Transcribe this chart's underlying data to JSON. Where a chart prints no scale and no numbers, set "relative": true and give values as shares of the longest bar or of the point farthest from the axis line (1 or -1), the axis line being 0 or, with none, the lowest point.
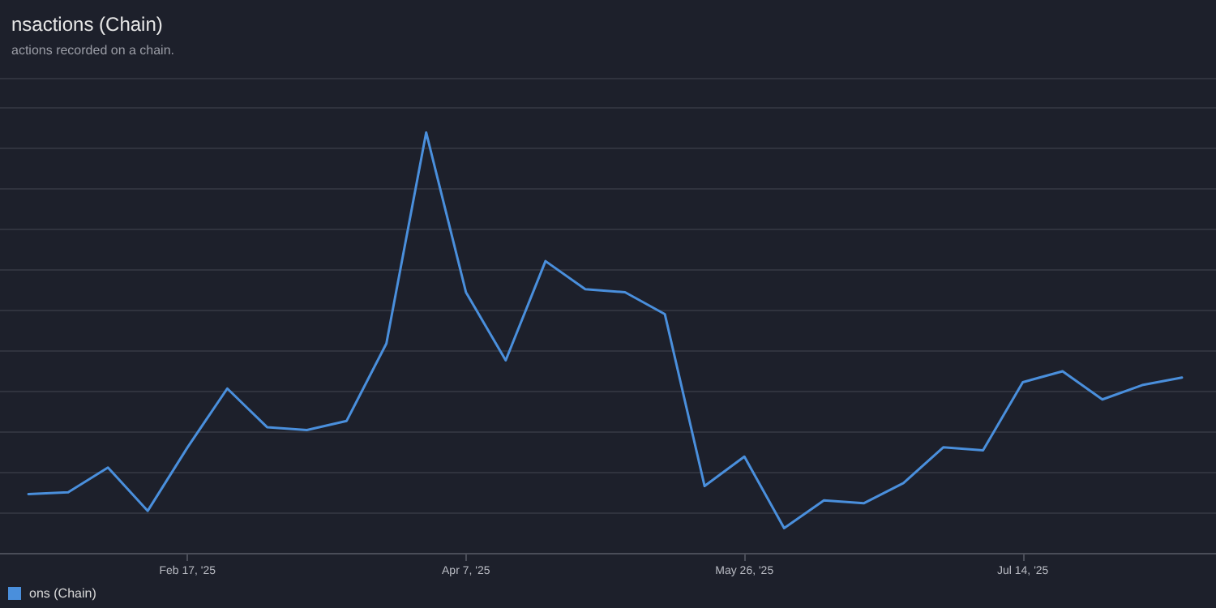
{
  "chart_data": {
    "type": "line",
    "title": "nsactions (Chain)",
    "subtitle": "actions recorded on a chain.",
    "relative": true,
    "x": [
      "2025-01-20",
      "2025-01-27",
      "2025-02-03",
      "2025-02-10",
      "2025-02-17",
      "2025-02-24",
      "2025-03-03",
      "2025-03-10",
      "2025-03-17",
      "2025-03-24",
      "2025-03-31",
      "2025-04-07",
      "2025-04-14",
      "2025-04-21",
      "2025-04-28",
      "2025-05-05",
      "2025-05-12",
      "2025-05-19",
      "2025-05-26",
      "2025-06-02",
      "2025-06-09",
      "2025-06-16",
      "2025-06-23",
      "2025-06-30",
      "2025-07-07",
      "2025-07-14",
      "2025-07-21",
      "2025-07-28",
      "2025-08-04",
      "2025-08-11"
    ],
    "xlim": [
      "2025-01-15",
      "2025-08-17"
    ],
    "xticks": [
      {
        "value": "2025-02-17",
        "label": "Feb 17, '25"
      },
      {
        "value": "2025-04-07",
        "label": "Apr 7, '25"
      },
      {
        "value": "2025-05-26",
        "label": "May 26, '25"
      },
      {
        "value": "2025-07-14",
        "label": "Jul 14, '25"
      }
    ],
    "series": [
      {
        "name": "ons (Chain)",
        "color": "#4a8fdc",
        "values": [
          0.14,
          0.144,
          0.203,
          0.1,
          0.251,
          0.391,
          0.299,
          0.292,
          0.314,
          0.498,
          1,
          0.62,
          0.458,
          0.694,
          0.627,
          0.62,
          0.568,
          0.159,
          0.229,
          0.059,
          0.125,
          0.118,
          0.166,
          0.251,
          0.244,
          0.406,
          0.432,
          0.365,
          0.399,
          0.417
        ]
      }
    ],
    "grid": "y",
    "legend": "bottom left",
    "marker": "none",
    "line_style": "solid"
  }
}
